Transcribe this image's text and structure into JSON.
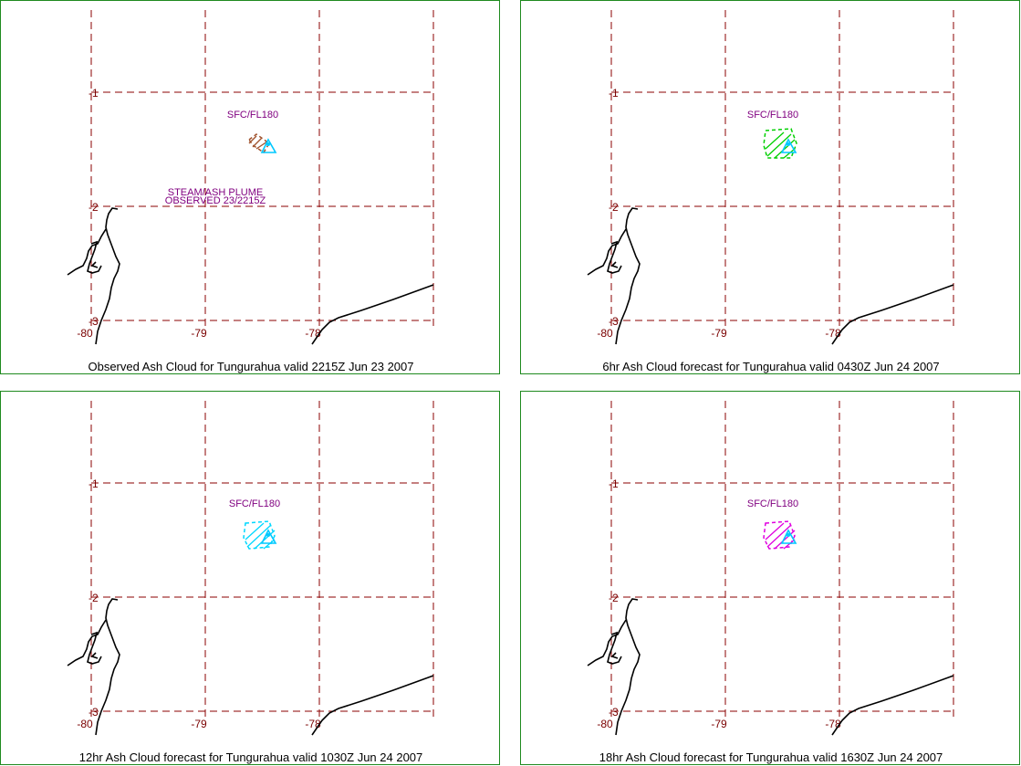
{
  "map": {
    "lat_labels": [
      "-1",
      "-2",
      "-3"
    ],
    "lon_labels": [
      "-80",
      "-79",
      "-78"
    ],
    "colors": {
      "frame": "#1f8a1f",
      "grid": "#8b0000",
      "coast": "#000000",
      "volcano": "#00c8ff",
      "label": "#800080",
      "obs_ash": "#a0522d",
      "fc6_ash": "#00d000",
      "fc12_ash": "#00d8ff",
      "fc18_ash": "#e000e0"
    }
  },
  "panels": [
    {
      "caption": "Observed Ash Cloud for Tungurahua valid 2215Z Jun 23 2007",
      "flight_level": "SFC/FL180",
      "note_line1": "STEAM/ASH PLUME",
      "note_line2": "OBSERVED 23/2215Z",
      "ash_color": "#a0522d"
    },
    {
      "caption": "6hr Ash Cloud forecast for Tungurahua valid 0430Z Jun 24 2007",
      "flight_level": "SFC/FL180",
      "ash_color": "#00d000"
    },
    {
      "caption": "12hr Ash Cloud forecast for Tungurahua valid 1030Z Jun 24 2007",
      "flight_level": "SFC/FL180",
      "ash_color": "#00d8ff"
    },
    {
      "caption": "18hr Ash Cloud forecast for Tungurahua valid 1630Z Jun 24 2007",
      "flight_level": "SFC/FL180",
      "ash_color": "#e000e0"
    }
  ]
}
